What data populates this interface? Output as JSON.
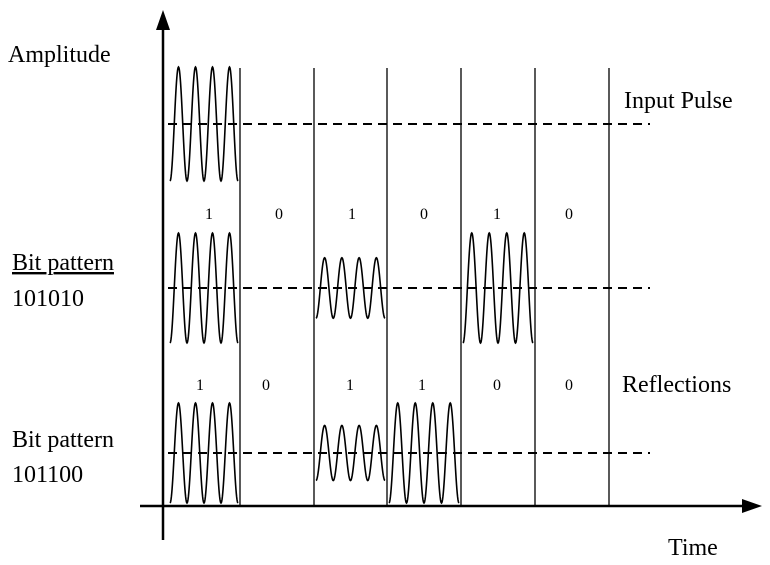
{
  "labels": {
    "y_axis": "Amplitude",
    "x_axis": "Time",
    "input_pulse": "Input Pulse",
    "reflections": "Reflections",
    "pattern_a_title": "Bit pattern",
    "pattern_a_value": "101010",
    "pattern_b_title": "Bit pattern",
    "pattern_b_value": "101100"
  },
  "bits_row_a": [
    "1",
    "0",
    "1",
    "0",
    "1",
    "0"
  ],
  "bits_row_b": [
    "1",
    "0",
    "1",
    "1",
    "0",
    "0"
  ],
  "waveforms": {
    "input": [
      1,
      0,
      0,
      0,
      0,
      0
    ],
    "pattern_a": [
      1,
      0,
      0.55,
      0,
      1,
      0
    ],
    "pattern_b": [
      1,
      0,
      0.55,
      1,
      0,
      0
    ]
  },
  "cycles_per_slot": 4
}
